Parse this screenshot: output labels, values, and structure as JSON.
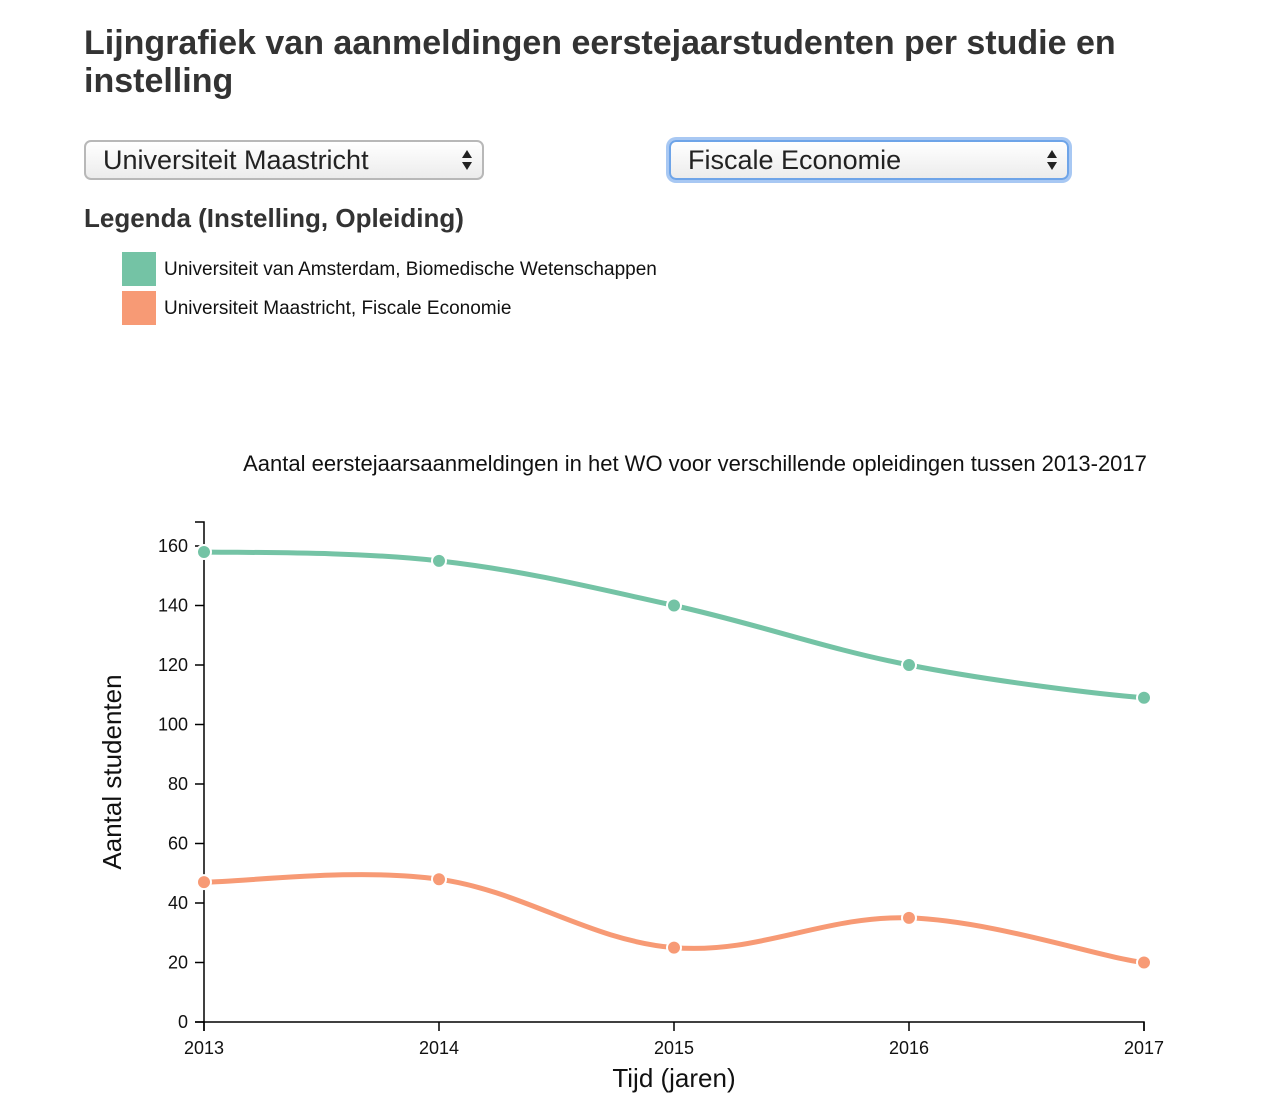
{
  "page": {
    "title": "Lijngrafiek van aanmeldingen eerstejaarstudenten per studie en instelling"
  },
  "controls": {
    "institution_select": {
      "value": "Universiteit Maastricht"
    },
    "program_select": {
      "value": "Fiscale Economie"
    }
  },
  "legend": {
    "heading": "Legenda (Instelling, Opleiding)",
    "items": [
      {
        "label": "Universiteit van Amsterdam, Biomedische Wetenschappen",
        "color": "#74c3a5"
      },
      {
        "label": "Universiteit Maastricht, Fiscale Economie",
        "color": "#f79a75"
      }
    ]
  },
  "chart_data": {
    "type": "line",
    "title": "Aantal eerstejaarsaanmeldingen in het WO voor verschillende opleidingen tussen 2013-2017",
    "xlabel": "Tijd (jaren)",
    "ylabel": "Aantal studenten",
    "x": [
      2013,
      2014,
      2015,
      2016,
      2017
    ],
    "ylim": [
      0,
      168
    ],
    "yticks": [
      0,
      20,
      40,
      60,
      80,
      100,
      120,
      140,
      160
    ],
    "grid": false,
    "series": [
      {
        "name": "Universiteit van Amsterdam, Biomedische Wetenschappen",
        "color": "#74c3a5",
        "values": [
          158,
          155,
          140,
          120,
          109
        ]
      },
      {
        "name": "Universiteit Maastricht, Fiscale Economie",
        "color": "#f79a75",
        "values": [
          47,
          48,
          25,
          35,
          20
        ]
      }
    ]
  }
}
